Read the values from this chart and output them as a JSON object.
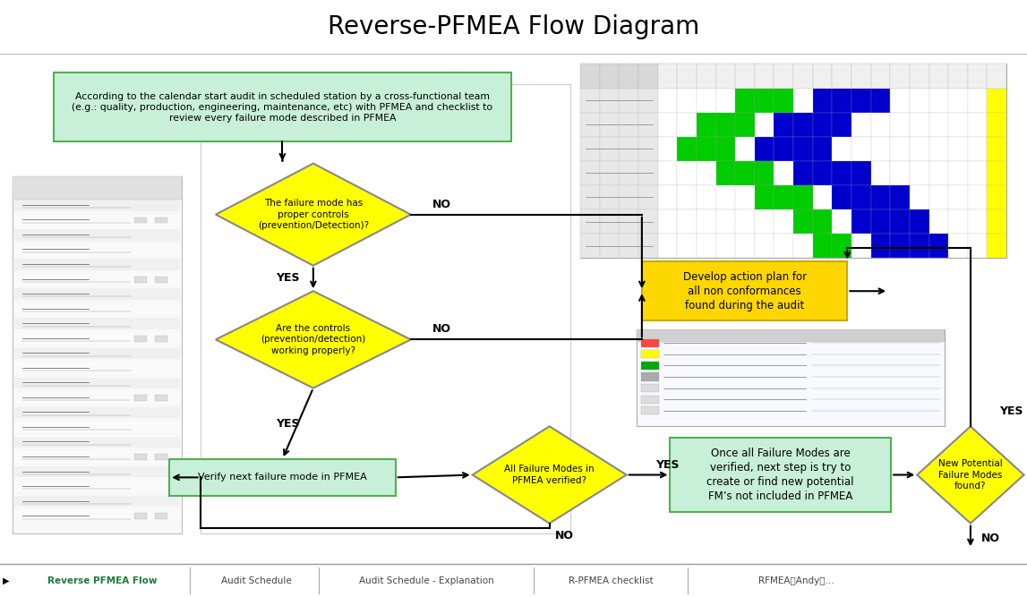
{
  "title": "Reverse-PFMEA Flow Diagram",
  "title_bg": "#a8c4e0",
  "title_font": "Courier New",
  "title_fontsize": 20,
  "bg_color": "#f5f5f5",
  "tab_bar_bg": "#ffffff",
  "tab_labels": [
    "Reverse PFMEA Flow",
    "Audit Schedule",
    "Audit Schedule - Explanation",
    "R-PFMEA checklist",
    "RFMEA的Andy建..."
  ],
  "tab_active": 0,
  "tab_active_color": "#1a7a3a",
  "tab_inactive_color": "#444444",
  "d1_text": "The failure mode has\nproper controls\n(prevention/Detection)?",
  "d2_text": "Are the controls\n(prevention/detection)\nworking properly?",
  "d3_text": "All Failure Modes in\nPFMEA verified?",
  "d4_text": "New Potential\nFailure Modes\nfound?",
  "start_text": "According to the calendar start audit in scheduled station by a cross-functional team\n(e.g.: quality, production, engineering, maintenance, etc) with PFMEA and checklist to\nreview every failure mode described in PFMEA",
  "action_text": "Develop action plan for\nall non conformances\nfound during the audit",
  "verify_text": "Verify next failure mode in PFMEA",
  "once_text": "Once all Failure Modes are\nverified, next step is try to\ncreate or find new potential\nFM’s not included in PFMEA",
  "green_bg": "#c8f0d8",
  "green_border": "#50b050",
  "yellow_bg": "#ffff00",
  "yellow_border": "#cccc00",
  "gold_bg": "#ffd700",
  "gold_border": "#ccaa00"
}
